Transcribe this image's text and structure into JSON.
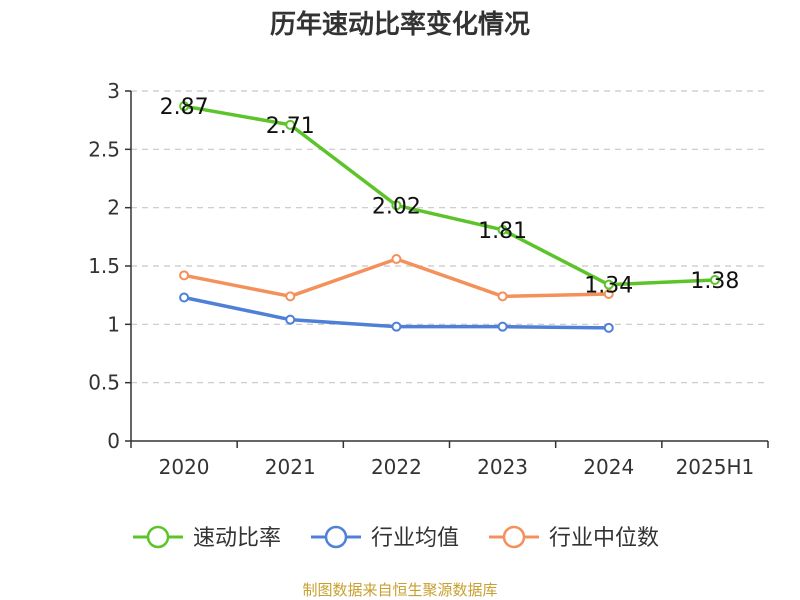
{
  "chart_data": {
    "type": "line",
    "title": "历年速动比率变化情况",
    "categories": [
      "2020",
      "2021",
      "2022",
      "2023",
      "2024",
      "2025H1"
    ],
    "ylim": [
      0,
      3
    ],
    "yticks": [
      "0",
      "0.5",
      "1",
      "1.5",
      "2",
      "2.5",
      "3"
    ],
    "grid": true,
    "legend_position": "bottom",
    "series": [
      {
        "name": "速动比率",
        "color": "#5cc42a",
        "values": [
          2.87,
          2.71,
          2.02,
          1.81,
          1.34,
          1.38
        ],
        "labels": [
          "2.87",
          "2.71",
          "2.02",
          "1.81",
          "1.34",
          "1.38"
        ]
      },
      {
        "name": "行业均值",
        "color": "#4f80d8",
        "values": [
          1.23,
          1.04,
          0.98,
          0.98,
          0.97,
          null
        ]
      },
      {
        "name": "行业中位数",
        "color": "#f4905a",
        "values": [
          1.42,
          1.24,
          1.56,
          1.24,
          1.26,
          null
        ]
      }
    ]
  },
  "source": "制图数据来自恒生聚源数据库"
}
